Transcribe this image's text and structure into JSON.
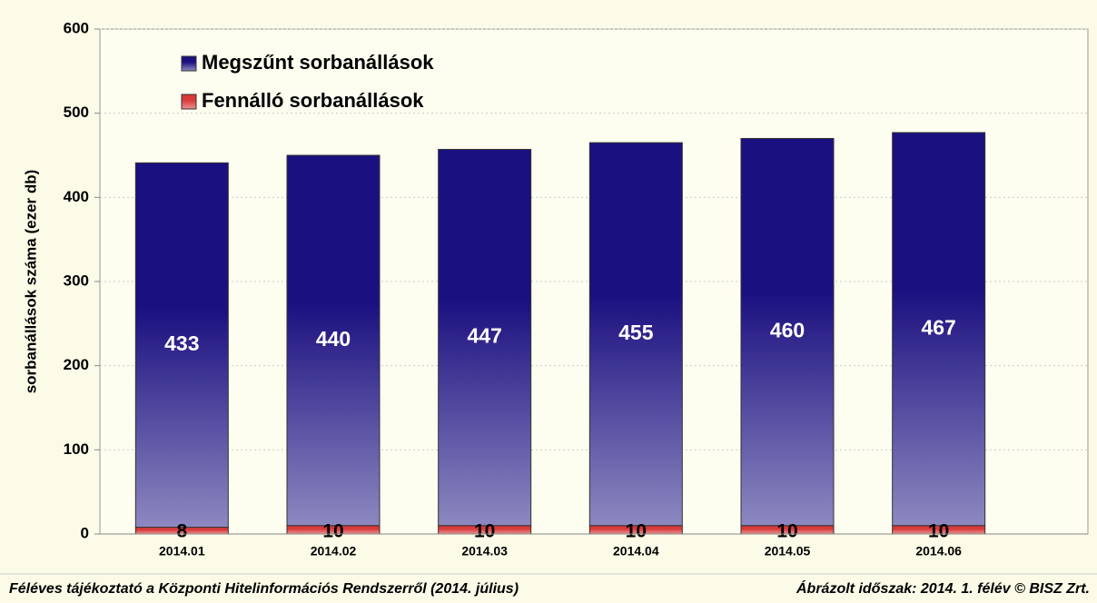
{
  "chart_data": {
    "type": "stacked_bar",
    "ylabel": "sorbanállások száma (ezer db)",
    "categories": [
      "2014.01",
      "2014.02",
      "2014.03",
      "2014.04",
      "2014.05",
      "2014.06"
    ],
    "series": [
      {
        "name": "Megszűnt sorbanállások",
        "color": "#1b1080",
        "values": [
          433,
          440,
          447,
          455,
          460,
          467
        ]
      },
      {
        "name": "Fennálló sorbanállások",
        "color": "#d83a3a",
        "values": [
          8,
          10,
          10,
          10,
          10,
          10
        ]
      }
    ],
    "ylim": [
      0,
      600
    ],
    "yticks": [
      0,
      100,
      200,
      300,
      400,
      500,
      600
    ],
    "grid": true,
    "legend": "top-left",
    "footer_left": "Féléves tájékoztató a Központi Hitelinformációs Rendszerről (2014. július)",
    "footer_right": "Ábrázolt időszak: 2014. 1. félév © BISZ Zrt."
  }
}
